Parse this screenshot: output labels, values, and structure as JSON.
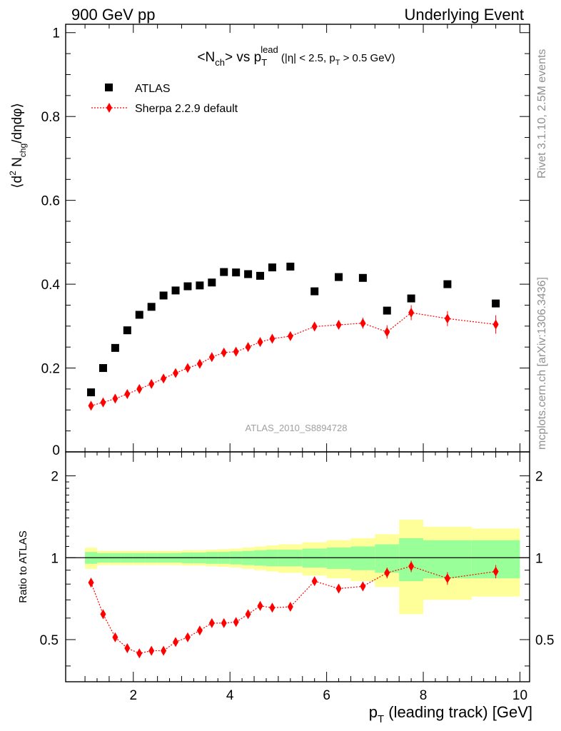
{
  "header": {
    "left": "900 GeV pp",
    "right": "Underlying Event"
  },
  "side_labels": {
    "rivet": "Rivet 3.1.10,  2.5M events",
    "mcplots": "mcplots.cern.ch [arXiv:1306.3436]"
  },
  "colors": {
    "data": "#000000",
    "mc": "#ff0000",
    "band_inner": "#99ff99",
    "band_outer": "#ffff99"
  },
  "chart_data": [
    {
      "type": "scatter",
      "title": "<Nch> vs pT lead (|η| < 2.5, pT > 0.5 GeV)",
      "title_parts": {
        "main": "<N",
        "sub1": "ch",
        "mid": "> vs p",
        "sub2": "T",
        "sup2": "lead",
        "cut_a": " (|η| < 2.5, p",
        "sub3": "T",
        "cut_b": " > 0.5 GeV)"
      },
      "ylabel": "⟨d² Nchg/dηdφ⟩",
      "ylabel_parts": {
        "a": "⟨d",
        "sup": "2",
        "b": " N",
        "sub": "chg",
        "c": "/dηdφ⟩"
      },
      "watermark": "ATLAS_2010_S8894728",
      "xlim": [
        0.6,
        10.2
      ],
      "ylim": [
        0,
        1.02
      ],
      "yticks": [
        0.2,
        0.4,
        0.6,
        0.8,
        1
      ],
      "ytick_labels": [
        "0.2",
        "0.4",
        "0.6",
        "0.8",
        "1"
      ],
      "y_zero_label": "0",
      "legend_position": "top-left",
      "series": [
        {
          "name": "ATLAS",
          "marker": "square",
          "x": [
            1.125,
            1.375,
            1.625,
            1.875,
            2.125,
            2.375,
            2.625,
            2.875,
            3.125,
            3.375,
            3.625,
            3.875,
            4.125,
            4.375,
            4.625,
            4.875,
            5.25,
            5.75,
            6.25,
            6.75,
            7.25,
            7.75,
            8.5,
            9.5
          ],
          "y": [
            0.142,
            0.2,
            0.248,
            0.29,
            0.327,
            0.346,
            0.373,
            0.385,
            0.395,
            0.397,
            0.404,
            0.429,
            0.428,
            0.424,
            0.42,
            0.44,
            0.442,
            0.383,
            0.417,
            0.415,
            0.337,
            0.366,
            0.4,
            0.354
          ]
        },
        {
          "name": "Sherpa 2.2.9 default",
          "marker": "diamond",
          "x": [
            1.125,
            1.375,
            1.625,
            1.875,
            2.125,
            2.375,
            2.625,
            2.875,
            3.125,
            3.375,
            3.625,
            3.875,
            4.125,
            4.375,
            4.625,
            4.875,
            5.25,
            5.75,
            6.25,
            6.75,
            7.25,
            7.75,
            8.5,
            9.5
          ],
          "y": [
            0.11,
            0.118,
            0.127,
            0.138,
            0.15,
            0.162,
            0.175,
            0.188,
            0.2,
            0.21,
            0.226,
            0.237,
            0.239,
            0.25,
            0.262,
            0.27,
            0.276,
            0.299,
            0.303,
            0.307,
            0.286,
            0.332,
            0.318,
            0.304
          ],
          "err": [
            0.002,
            0.002,
            0.002,
            0.003,
            0.003,
            0.003,
            0.004,
            0.004,
            0.004,
            0.005,
            0.005,
            0.005,
            0.006,
            0.006,
            0.006,
            0.007,
            0.007,
            0.008,
            0.01,
            0.013,
            0.016,
            0.018,
            0.018,
            0.022
          ]
        }
      ]
    },
    {
      "type": "scatter",
      "ylabel": "Ratio to ATLAS",
      "xlabel": "pT (leading track) [GeV]",
      "xlabel_parts": {
        "a": "p",
        "sub": "T",
        "b": " (leading track) [GeV]"
      },
      "xlim": [
        0.6,
        10.2
      ],
      "ylim": [
        0.35,
        2.45
      ],
      "log_y": true,
      "xticks": [
        2,
        4,
        6,
        8,
        10
      ],
      "xtick_labels": [
        "2",
        "4",
        "6",
        "8",
        "10"
      ],
      "yticks": [
        0.5,
        1,
        2
      ],
      "ytick_labels": [
        "0.5",
        "1",
        "2"
      ],
      "bands": {
        "edges": [
          1.0,
          1.25,
          1.5,
          1.75,
          2.0,
          2.25,
          2.5,
          2.75,
          3.0,
          3.25,
          3.5,
          3.75,
          4.0,
          4.25,
          4.5,
          4.75,
          5.0,
          5.5,
          6.0,
          6.5,
          7.0,
          7.5,
          8.0,
          9.0,
          10.0
        ],
        "inner_half_width": [
          0.05,
          0.04,
          0.04,
          0.04,
          0.04,
          0.04,
          0.04,
          0.04,
          0.045,
          0.045,
          0.05,
          0.05,
          0.055,
          0.06,
          0.065,
          0.07,
          0.07,
          0.08,
          0.09,
          0.1,
          0.12,
          0.18,
          0.16,
          0.16
        ],
        "outer_half_width": [
          0.09,
          0.06,
          0.06,
          0.06,
          0.06,
          0.06,
          0.06,
          0.06,
          0.065,
          0.065,
          0.07,
          0.075,
          0.08,
          0.09,
          0.1,
          0.11,
          0.12,
          0.14,
          0.16,
          0.18,
          0.22,
          0.38,
          0.3,
          0.28
        ]
      },
      "series": [
        {
          "name": "Sherpa 2.2.9 default",
          "marker": "diamond",
          "x": [
            1.125,
            1.375,
            1.625,
            1.875,
            2.125,
            2.375,
            2.625,
            2.875,
            3.125,
            3.375,
            3.625,
            3.875,
            4.125,
            4.375,
            4.625,
            4.875,
            5.25,
            5.75,
            6.25,
            6.75,
            7.25,
            7.75,
            8.5,
            9.5
          ],
          "y": [
            0.81,
            0.62,
            0.51,
            0.465,
            0.445,
            0.455,
            0.455,
            0.49,
            0.51,
            0.54,
            0.575,
            0.575,
            0.58,
            0.62,
            0.665,
            0.655,
            0.66,
            0.82,
            0.77,
            0.785,
            0.88,
            0.93,
            0.84,
            0.89
          ],
          "err": [
            0.01,
            0.01,
            0.01,
            0.01,
            0.01,
            0.01,
            0.01,
            0.01,
            0.01,
            0.01,
            0.012,
            0.012,
            0.013,
            0.014,
            0.015,
            0.016,
            0.016,
            0.02,
            0.025,
            0.03,
            0.04,
            0.045,
            0.045,
            0.05
          ]
        }
      ]
    }
  ]
}
